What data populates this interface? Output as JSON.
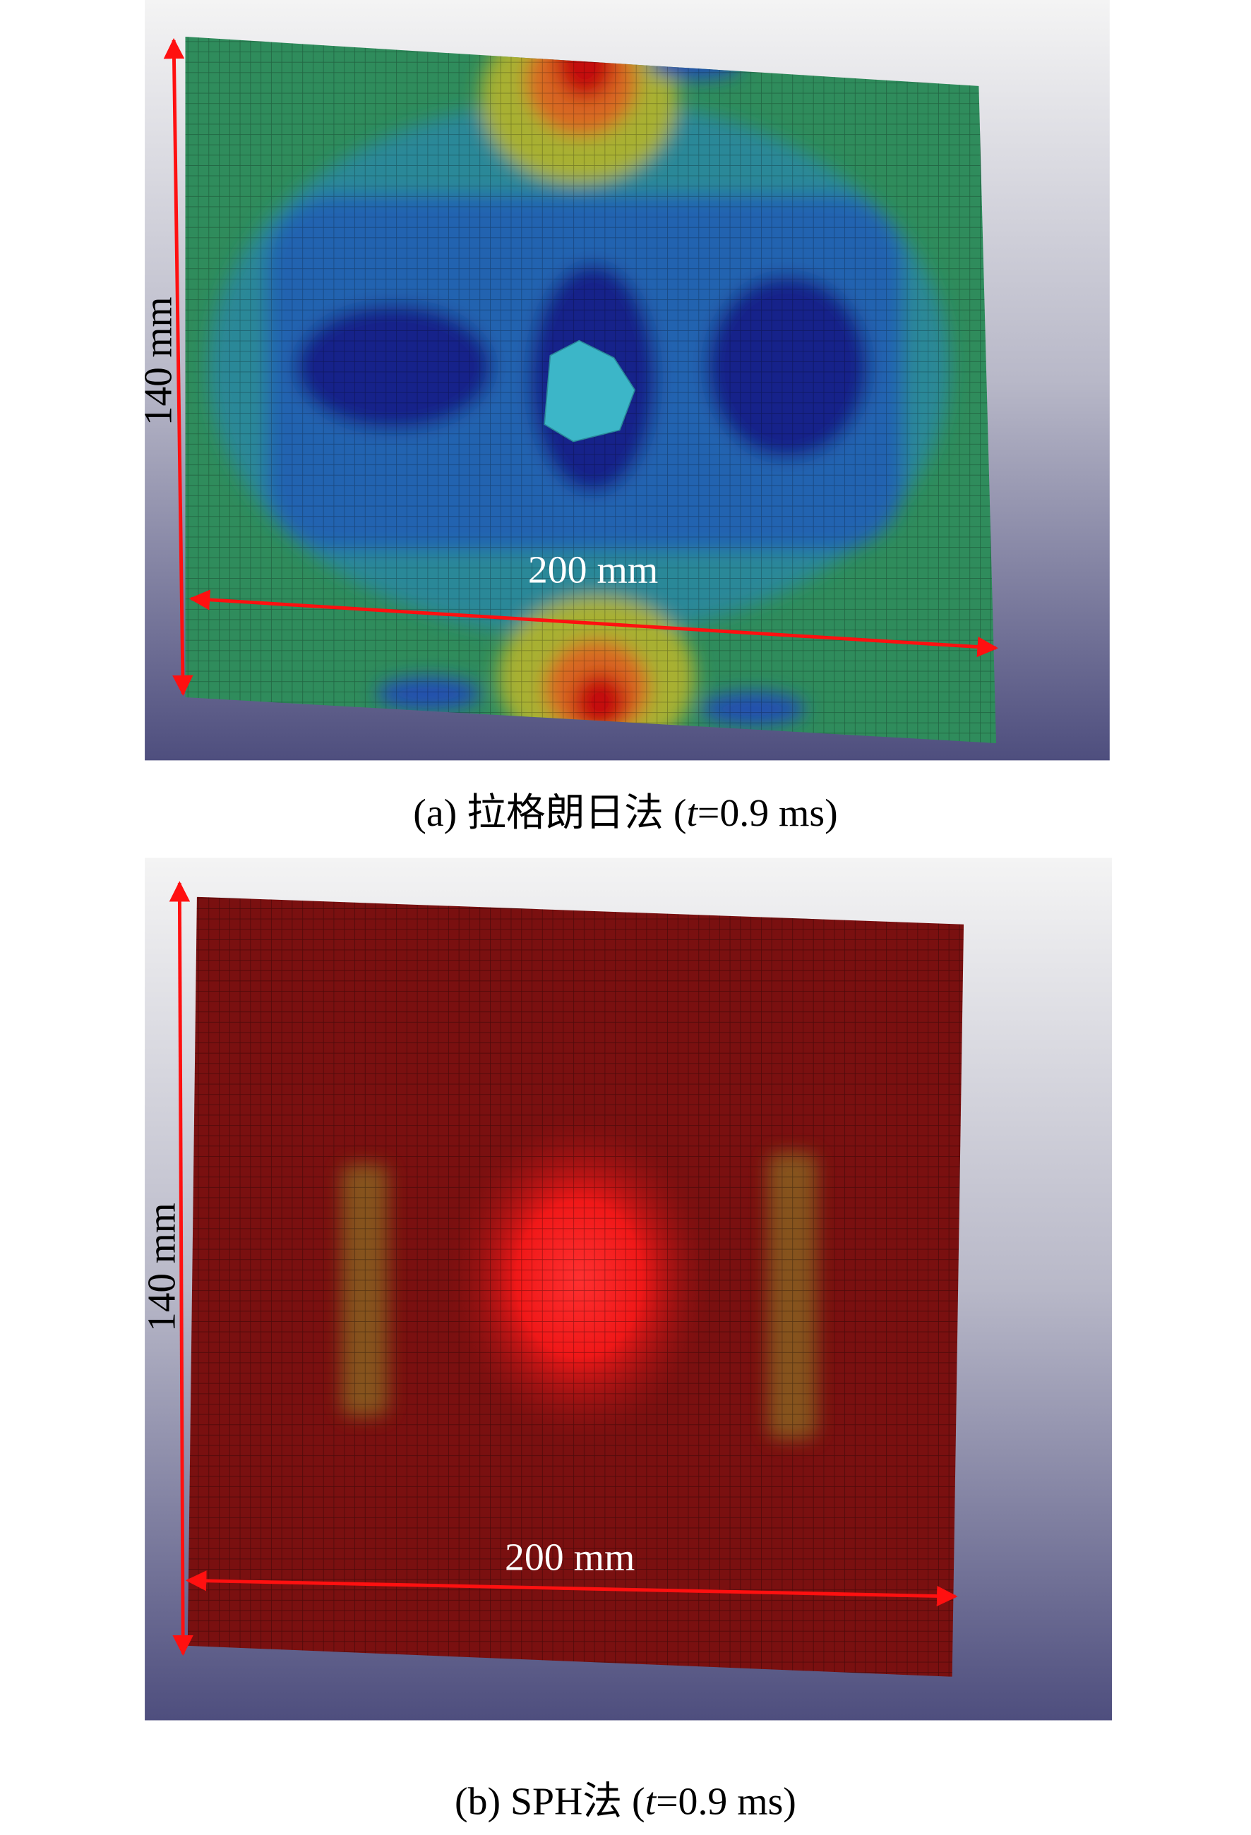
{
  "figure": {
    "panels": [
      {
        "dim_height": "140 mm",
        "dim_width": "200 mm",
        "caption": {
          "prefix": "(a) 拉格朗日法 (",
          "variable": "t",
          "suffix": "=0.9 ms)"
        }
      },
      {
        "dim_height": "140 mm",
        "dim_width": "200 mm",
        "caption": {
          "prefix": "(b) SPH法 (",
          "variable": "t",
          "suffix": "=0.9 ms)"
        }
      }
    ]
  }
}
